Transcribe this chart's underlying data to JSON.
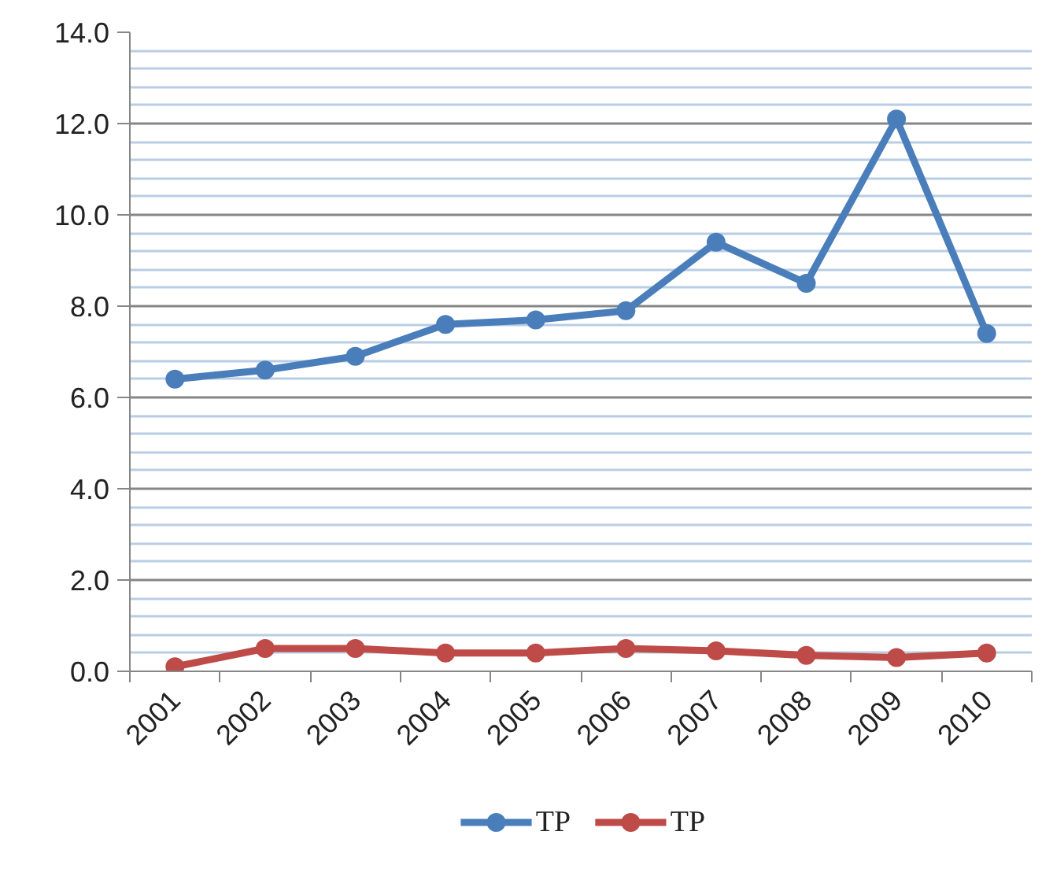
{
  "chart_data": {
    "type": "line",
    "categories": [
      "2001",
      "2002",
      "2003",
      "2004",
      "2005",
      "2006",
      "2007",
      "2008",
      "2009",
      "2010"
    ],
    "series": [
      {
        "name": "TP",
        "color": "#4a7ebb",
        "values": [
          6.4,
          6.6,
          6.9,
          7.6,
          7.7,
          7.9,
          9.4,
          8.5,
          12.1,
          7.4
        ]
      },
      {
        "name": "TP",
        "color": "#be4b48",
        "values": [
          0.1,
          0.5,
          0.5,
          0.4,
          0.4,
          0.5,
          0.45,
          0.35,
          0.3,
          0.4
        ]
      }
    ],
    "ylim": [
      0,
      14
    ],
    "yticks": [
      {
        "value": 0,
        "label": "0.0"
      },
      {
        "value": 0.4,
        "label": null
      },
      {
        "value": 0.8,
        "label": null
      },
      {
        "value": 1.2,
        "label": null
      },
      {
        "value": 1.6,
        "label": null
      },
      {
        "value": 2,
        "label": "2.0"
      },
      {
        "value": 2.4,
        "label": null
      },
      {
        "value": 2.8,
        "label": null
      },
      {
        "value": 3.2,
        "label": null
      },
      {
        "value": 3.6,
        "label": null
      },
      {
        "value": 4,
        "label": "4.0"
      },
      {
        "value": 4.4,
        "label": null
      },
      {
        "value": 4.8,
        "label": null
      },
      {
        "value": 5.2,
        "label": null
      },
      {
        "value": 5.6,
        "label": null
      },
      {
        "value": 6,
        "label": "6.0"
      },
      {
        "value": 6.4,
        "label": null
      },
      {
        "value": 6.8,
        "label": null
      },
      {
        "value": 7.2,
        "label": null
      },
      {
        "value": 7.6,
        "label": null
      },
      {
        "value": 8,
        "label": "8.0"
      },
      {
        "value": 8.4,
        "label": null
      },
      {
        "value": 8.8,
        "label": null
      },
      {
        "value": 9.2,
        "label": null
      },
      {
        "value": 9.6,
        "label": null
      },
      {
        "value": 10,
        "label": "10.0"
      },
      {
        "value": 10.4,
        "label": null
      },
      {
        "value": 10.8,
        "label": null
      },
      {
        "value": 11.2,
        "label": null
      },
      {
        "value": 11.6,
        "label": null
      },
      {
        "value": 12,
        "label": "12.0"
      },
      {
        "value": 12.4,
        "label": null
      },
      {
        "value": 12.8,
        "label": null
      },
      {
        "value": 13.2,
        "label": null
      },
      {
        "value": 13.6,
        "label": null
      },
      {
        "value": 14,
        "label": "14.0"
      }
    ],
    "grid": "y",
    "legend": "bottom",
    "marker": "circle",
    "line_style": "solid"
  }
}
